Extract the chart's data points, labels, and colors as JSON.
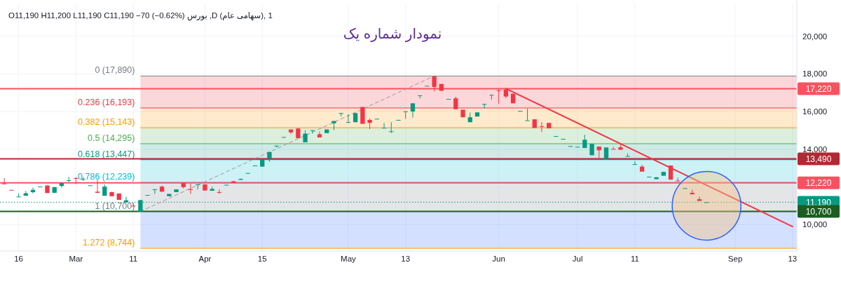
{
  "chart_data": {
    "type": "candlestick",
    "title": "نمودار شماره یک",
    "subtitle": "1 ,(سهامی عام) D, بورس  O11,190 H11,200 L11,190 C11,190 −70 (−0.62%)",
    "categories": [
      null,
      null,
      "16",
      null,
      null,
      null,
      null,
      null,
      null,
      null,
      "Mar",
      null,
      null,
      null,
      null,
      null,
      null,
      null,
      "11",
      null,
      null,
      null,
      null,
      null,
      null,
      null,
      null,
      null,
      "Apr",
      null,
      null,
      null,
      null,
      null,
      null,
      null,
      "15",
      null,
      null,
      null,
      null,
      null,
      null,
      null,
      null,
      null,
      null,
      null,
      "May",
      null,
      null,
      null,
      null,
      null,
      null,
      null,
      "13",
      null,
      null,
      null,
      null,
      null,
      null,
      null,
      null,
      null,
      null,
      null,
      null,
      "Jun",
      null,
      null,
      null,
      null,
      null,
      null,
      null,
      null,
      null,
      null,
      "Jul",
      null,
      null,
      null,
      null,
      null,
      null,
      null,
      "11",
      null,
      null,
      null,
      null,
      null,
      null,
      null,
      null,
      null,
      null,
      null,
      null,
      null,
      "Sep",
      null,
      null,
      null,
      null,
      null,
      null,
      null,
      "13"
    ],
    "ohlc": [
      [
        12180,
        12470,
        12170,
        12170
      ],
      [
        11845,
        11845,
        11835,
        11835
      ],
      [
        11480,
        11660,
        11480,
        11490
      ],
      [
        11534,
        11787,
        11534,
        11666
      ],
      [
        11727,
        11969,
        11654,
        11848
      ],
      [
        12010,
        12020,
        12010,
        12020
      ],
      [
        12077,
        12077,
        11678,
        11678
      ],
      [
        11690,
        11993,
        11690,
        11993
      ],
      [
        12053,
        12210,
        11957,
        12210
      ],
      [
        12340,
        12535,
        12270,
        12360
      ],
      [
        12470,
        12535,
        12150,
        12450
      ],
      [
        12405,
        12520,
        12330,
        12415
      ],
      [
        12075,
        12085,
        12075,
        12085
      ],
      [
        11750,
        12380,
        11690,
        11690
      ],
      [
        11534,
        12138,
        11534,
        12017
      ],
      [
        11727,
        11750,
        11510,
        11510
      ],
      [
        11654,
        11654,
        11316,
        11316
      ],
      [
        11183,
        11485,
        11183,
        11292
      ],
      [
        11000,
        11150,
        10990,
        10990
      ],
      [
        10688,
        11304,
        10688,
        11304
      ],
      [
        11565,
        11575,
        11565,
        11575
      ],
      [
        11870,
        11880,
        11630,
        11880
      ],
      [
        12017,
        12077,
        11750,
        11750
      ],
      [
        11510,
        11630,
        11510,
        11630
      ],
      [
        11727,
        11872,
        11727,
        11872
      ],
      [
        12210,
        12210,
        11920,
        11993
      ],
      [
        11880,
        12174,
        11630,
        11870
      ],
      [
        12120,
        12138,
        11870,
        12138
      ],
      [
        12138,
        12138,
        11812,
        11812
      ],
      [
        11800,
        12017,
        11800,
        11896
      ],
      [
        11730,
        11870,
        11630,
        11720
      ],
      [
        12100,
        12114,
        12100,
        12114
      ],
      [
        12307,
        12307,
        12235,
        12235
      ],
      [
        12380,
        12450,
        12380,
        12430
      ],
      [
        12730,
        12740,
        12730,
        12740
      ],
      [
        13130,
        13140,
        13130,
        13140
      ],
      [
        13080,
        13467,
        13080,
        13467
      ],
      [
        13500,
        13855,
        13330,
        13855
      ],
      [
        14180,
        14190,
        14100,
        14190
      ],
      [
        14640,
        14650,
        14640,
        14650
      ],
      [
        15050,
        15050,
        14800,
        14893
      ],
      [
        15100,
        15150,
        14590,
        14590
      ],
      [
        14370,
        15010,
        14370,
        14830
      ],
      [
        15000,
        15015,
        14830,
        15015
      ],
      [
        14800,
        14950,
        14630,
        14630
      ],
      [
        14860,
        15050,
        14860,
        15050
      ],
      [
        15380,
        15500,
        15010,
        15500
      ],
      [
        15900,
        15920,
        15740,
        15920
      ],
      [
        15420,
        15860,
        15420,
        15440
      ],
      [
        15437,
        15920,
        15437,
        15920
      ],
      [
        16246,
        16246,
        15352,
        15352
      ],
      [
        15560,
        15640,
        15075,
        15400
      ],
      [
        15610,
        15620,
        15610,
        15620
      ],
      [
        15130,
        15400,
        15130,
        15140
      ],
      [
        14940,
        15440,
        14870,
        14955
      ],
      [
        15550,
        15560,
        15550,
        15560
      ],
      [
        16000,
        16017,
        15620,
        16017
      ],
      [
        16005,
        16440,
        15680,
        16440
      ],
      [
        16850,
        16863,
        16700,
        16863
      ],
      [
        17360,
        17370,
        17360,
        17370
      ],
      [
        17866,
        17890,
        17070,
        17310
      ],
      [
        17467,
        17467,
        17104,
        17104
      ],
      [
        16660,
        16670,
        16660,
        16670
      ],
      [
        16705,
        16790,
        16125,
        16125
      ],
      [
        16100,
        16100,
        15700,
        15700
      ],
      [
        15437,
        15950,
        15437,
        15700
      ],
      [
        15740,
        15957,
        15740,
        15957
      ],
      [
        16390,
        16404,
        16160,
        16404
      ],
      [
        16880,
        16887,
        16640,
        16887
      ],
      [
        17130,
        17213,
        16404,
        17110
      ],
      [
        17165,
        17213,
        16705,
        16800
      ],
      [
        16950,
        16950,
        16440,
        16440
      ],
      [
        16030,
        16040,
        16030,
        16040
      ],
      [
        15530,
        16160,
        15530,
        15540
      ],
      [
        15590,
        15590,
        15135,
        15135
      ],
      [
        15230,
        15440,
        14920,
        15220
      ],
      [
        15400,
        15400,
        15110,
        15110
      ],
      [
        14690,
        14700,
        14690,
        14700
      ],
      [
        14550,
        14555,
        14550,
        14555
      ],
      [
        14160,
        14170,
        14160,
        14170
      ],
      [
        14130,
        14135,
        14130,
        14135
      ],
      [
        14070,
        14770,
        14070,
        14506
      ],
      [
        13684,
        14290,
        13684,
        14290
      ],
      [
        14144,
        14144,
        13540,
        13950
      ],
      [
        13491,
        14095,
        13491,
        14095
      ],
      [
        14020,
        14130,
        14010,
        14010
      ],
      [
        14110,
        14290,
        13975,
        13975
      ],
      [
        13630,
        13780,
        13630,
        13640
      ],
      [
        13200,
        13370,
        13200,
        13210
      ],
      [
        13080,
        13177,
        12815,
        12815
      ],
      [
        12535,
        12545,
        12535,
        12545
      ],
      [
        12415,
        12515,
        12415,
        12515
      ],
      [
        12597,
        12800,
        12597,
        12800
      ],
      [
        13140,
        13140,
        12390,
        12390
      ],
      [
        12340,
        12500,
        12320,
        12320
      ],
      [
        11930,
        11935,
        11930,
        11935
      ],
      [
        11690,
        11850,
        11610,
        11610
      ],
      [
        11350,
        11485,
        11260,
        11260
      ],
      [
        11190,
        11200,
        11190,
        11190
      ],
      null,
      null,
      null,
      null,
      null,
      null,
      null,
      null,
      null,
      null,
      null,
      null
    ],
    "series": [
      {
        "type": "line",
        "color": "#9598a1",
        "line_style": "dashed",
        "values": [
          null,
          null,
          null,
          null,
          null,
          null,
          null,
          null,
          null,
          null,
          null,
          null,
          null,
          null,
          null,
          null,
          null,
          null,
          null,
          10700,
          null,
          null,
          null,
          null,
          null,
          null,
          null,
          null,
          null,
          null,
          null,
          null,
          null,
          null,
          null,
          null,
          null,
          null,
          null,
          null,
          null,
          null,
          null,
          null,
          null,
          null,
          null,
          null,
          null,
          null,
          null,
          null,
          null,
          null,
          null,
          null,
          null,
          null,
          null,
          null,
          17890,
          null,
          null,
          null,
          null,
          null,
          null,
          null,
          null,
          null,
          null,
          null,
          null,
          null,
          null,
          null,
          null,
          null,
          null,
          null,
          null,
          null,
          null,
          null,
          null,
          null,
          null,
          null,
          null,
          null,
          null,
          null,
          null,
          null,
          null,
          null,
          null,
          null,
          null,
          null,
          null,
          null,
          null,
          null,
          null,
          null,
          null,
          null,
          null,
          null,
          null
        ]
      },
      {
        "type": "line",
        "color": "#f23645",
        "line_style": "solid",
        "values": [
          null,
          null,
          null,
          null,
          null,
          null,
          null,
          null,
          null,
          null,
          null,
          null,
          null,
          null,
          null,
          null,
          null,
          null,
          null,
          null,
          null,
          null,
          null,
          null,
          null,
          null,
          null,
          null,
          null,
          null,
          null,
          null,
          null,
          null,
          null,
          null,
          null,
          null,
          null,
          null,
          null,
          null,
          null,
          null,
          null,
          null,
          null,
          null,
          null,
          null,
          null,
          null,
          null,
          null,
          null,
          null,
          null,
          null,
          null,
          null,
          null,
          null,
          null,
          null,
          null,
          null,
          null,
          null,
          null,
          null,
          17220,
          null,
          null,
          null,
          null,
          null,
          null,
          null,
          null,
          null,
          null,
          null,
          null,
          null,
          null,
          null,
          null,
          null,
          null,
          null,
          null,
          null,
          null,
          null,
          null,
          null,
          null,
          null,
          null,
          null,
          null,
          null,
          null,
          null,
          null,
          null,
          null,
          null,
          null,
          null,
          9900
        ]
      }
    ],
    "ylim": [
      8600,
      21700
    ],
    "yticks": [
      {
        "value": 10000,
        "label": "10,000"
      },
      {
        "value": 14000,
        "label": "14,000"
      },
      {
        "value": 16000,
        "label": "16,000"
      },
      {
        "value": 18000,
        "label": "18,000"
      },
      {
        "value": 20000,
        "label": "20,000"
      }
    ],
    "grid": true,
    "bands": [
      {
        "axis": "y",
        "from": 17890,
        "to": 16193,
        "color": "#f23645"
      },
      {
        "axis": "y",
        "from": 16193,
        "to": 15143,
        "color": "#ff9800"
      },
      {
        "axis": "y",
        "from": 15143,
        "to": 14295,
        "color": "#4caf50"
      },
      {
        "axis": "y",
        "from": 14295,
        "to": 13447,
        "color": "#089981"
      },
      {
        "axis": "y",
        "from": 13447,
        "to": 12239,
        "color": "#00bcd4"
      },
      {
        "axis": "y",
        "from": 12239,
        "to": 10700,
        "color": "#787b86"
      },
      {
        "axis": "y",
        "from": 10700,
        "to": 8744,
        "color": "#2962ff"
      }
    ],
    "ref_lines": [
      {
        "axis": "y",
        "value": 17890,
        "color": "#787b86",
        "line_style": "solid"
      },
      {
        "axis": "y",
        "value": 16193,
        "color": "#f23645",
        "line_style": "solid"
      },
      {
        "axis": "y",
        "value": 15143,
        "color": "#ff9800",
        "line_style": "solid"
      },
      {
        "axis": "y",
        "value": 14295,
        "color": "#4caf50",
        "line_style": "solid"
      },
      {
        "axis": "y",
        "value": 13447,
        "color": "#089981",
        "line_style": "solid"
      },
      {
        "axis": "y",
        "value": 12239,
        "color": "#00bcd4",
        "line_style": "solid"
      },
      {
        "axis": "y",
        "value": 8744,
        "color": "#ff9800",
        "line_style": "solid"
      },
      {
        "axis": "y",
        "value": 17220,
        "label": "17,220",
        "color": "#f7525f",
        "line_style": "solid"
      },
      {
        "axis": "y",
        "value": 13490,
        "label": "13,490",
        "color": "#b22833",
        "line_style": "solid"
      },
      {
        "axis": "y",
        "value": 12220,
        "label": "12,220",
        "color": "#f7525f",
        "line_style": "solid"
      },
      {
        "axis": "y",
        "value": 11190,
        "label": "11,190",
        "color": "#089981",
        "line_style": "dotted"
      },
      {
        "axis": "y",
        "value": 10700,
        "label": "10,700",
        "color": "#1b5e20",
        "line_style": "solid"
      }
    ],
    "annotations": [
      "0 (17,890)",
      "0.236 (16,193)",
      "0.382 (15,143)",
      "0.5 (14,295)",
      "0.618 (13,447)",
      "0.786 (12,239)",
      "1 (10,700)",
      "1.272 (8,744)"
    ]
  }
}
